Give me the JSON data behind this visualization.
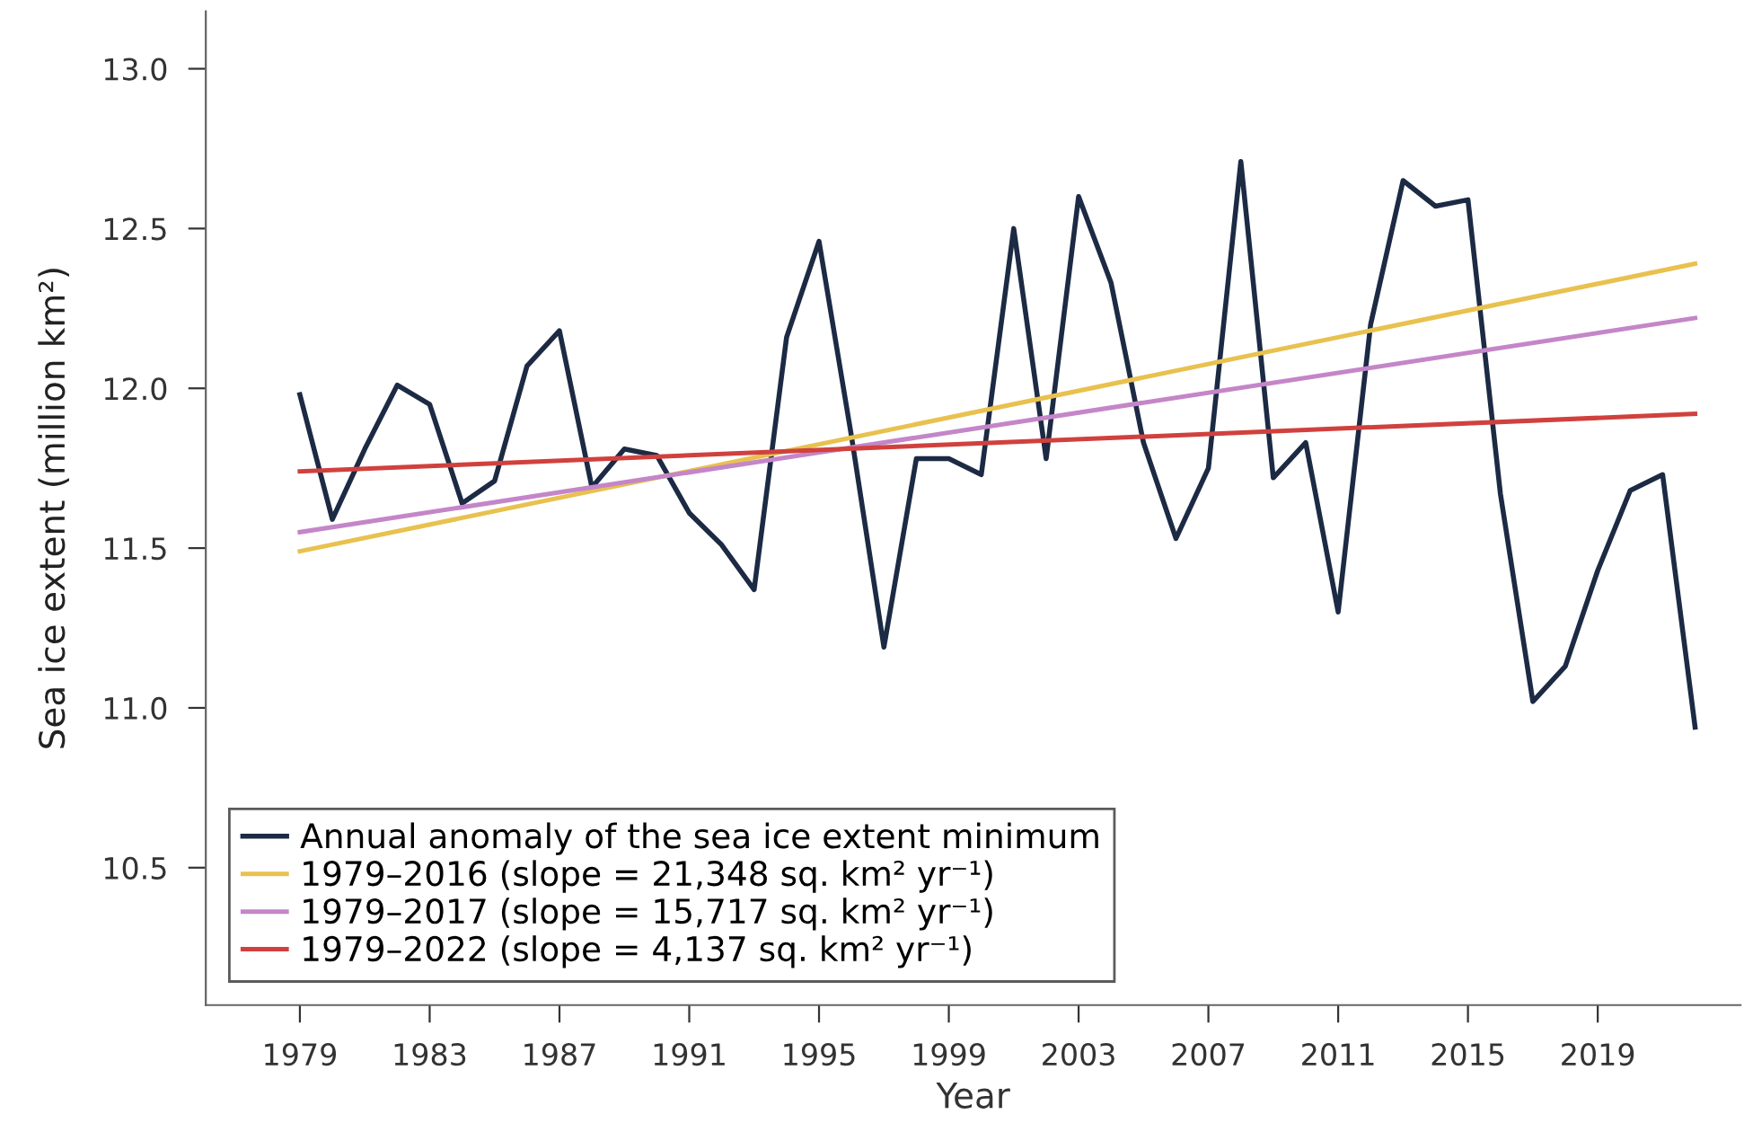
{
  "chart_data": {
    "type": "line",
    "xlabel": "Year",
    "ylabel": "Sea ice extent (million km²)",
    "x": [
      1979,
      1980,
      1981,
      1982,
      1983,
      1984,
      1985,
      1986,
      1987,
      1988,
      1989,
      1990,
      1991,
      1992,
      1993,
      1994,
      1995,
      1996,
      1997,
      1998,
      1999,
      2000,
      2001,
      2002,
      2003,
      2004,
      2005,
      2006,
      2007,
      2008,
      2009,
      2010,
      2011,
      2012,
      2013,
      2014,
      2015,
      2016,
      2017,
      2018,
      2019,
      2020,
      2021,
      2022
    ],
    "series": [
      {
        "name": "Annual anomaly of the sea ice extent minimum",
        "color": "#1c2a44",
        "values": [
          11.98,
          11.59,
          11.81,
          12.01,
          11.95,
          11.64,
          11.71,
          12.07,
          12.18,
          11.69,
          11.81,
          11.79,
          11.61,
          11.51,
          11.37,
          12.16,
          12.46,
          11.85,
          11.19,
          11.78,
          11.78,
          11.73,
          12.5,
          11.78,
          12.6,
          12.33,
          11.83,
          11.53,
          11.75,
          12.71,
          11.72,
          11.83,
          11.3,
          12.2,
          12.65,
          12.57,
          12.59,
          11.67,
          11.02,
          11.13,
          11.43,
          11.68,
          11.73,
          10.94
        ]
      },
      {
        "name": "1979–2016 (slope = 21,348 sq. km² yr⁻¹)",
        "color": "#e8c14f",
        "values": [
          11.49,
          null,
          null,
          null,
          null,
          null,
          null,
          null,
          null,
          null,
          null,
          null,
          null,
          null,
          null,
          null,
          null,
          null,
          null,
          null,
          null,
          null,
          null,
          null,
          null,
          null,
          null,
          null,
          null,
          null,
          null,
          null,
          null,
          null,
          null,
          null,
          null,
          null,
          null,
          null,
          null,
          null,
          null,
          12.39
        ]
      },
      {
        "name": "1979–2017 (slope = 15,717 sq. km² yr⁻¹)",
        "color": "#c486c8",
        "values": [
          11.55,
          null,
          null,
          null,
          null,
          null,
          null,
          null,
          null,
          null,
          null,
          null,
          null,
          null,
          null,
          null,
          null,
          null,
          null,
          null,
          null,
          null,
          null,
          null,
          null,
          null,
          null,
          null,
          null,
          null,
          null,
          null,
          null,
          null,
          null,
          null,
          null,
          null,
          null,
          null,
          null,
          null,
          null,
          12.22
        ]
      },
      {
        "name": "1979–2022 (slope = 4,137 sq. km² yr⁻¹)",
        "color": "#d0413e",
        "values": [
          11.74,
          null,
          null,
          null,
          null,
          null,
          null,
          null,
          null,
          null,
          null,
          null,
          null,
          null,
          null,
          null,
          null,
          null,
          null,
          null,
          null,
          null,
          null,
          null,
          null,
          null,
          null,
          null,
          null,
          null,
          null,
          null,
          null,
          null,
          null,
          null,
          null,
          null,
          null,
          null,
          null,
          null,
          null,
          11.92
        ]
      }
    ],
    "xlim": [
      1976.1,
      2023.4
    ],
    "xticks": [
      1979,
      1983,
      1987,
      1991,
      1995,
      1999,
      2003,
      2007,
      2011,
      2015,
      2019
    ],
    "ylim": [
      10.07,
      13.18
    ],
    "yticks": [
      {
        "value": 10.5,
        "label": "10.5"
      },
      {
        "value": 11.0,
        "label": "11.0"
      },
      {
        "value": 11.5,
        "label": "11.5"
      },
      {
        "value": 12.0,
        "label": "12.0"
      },
      {
        "value": 12.5,
        "label": "12.5"
      },
      {
        "value": 13.0,
        "label": "13.0"
      }
    ],
    "grid": false,
    "legend": "bottom left",
    "marker": "none",
    "line_style": "solid"
  }
}
